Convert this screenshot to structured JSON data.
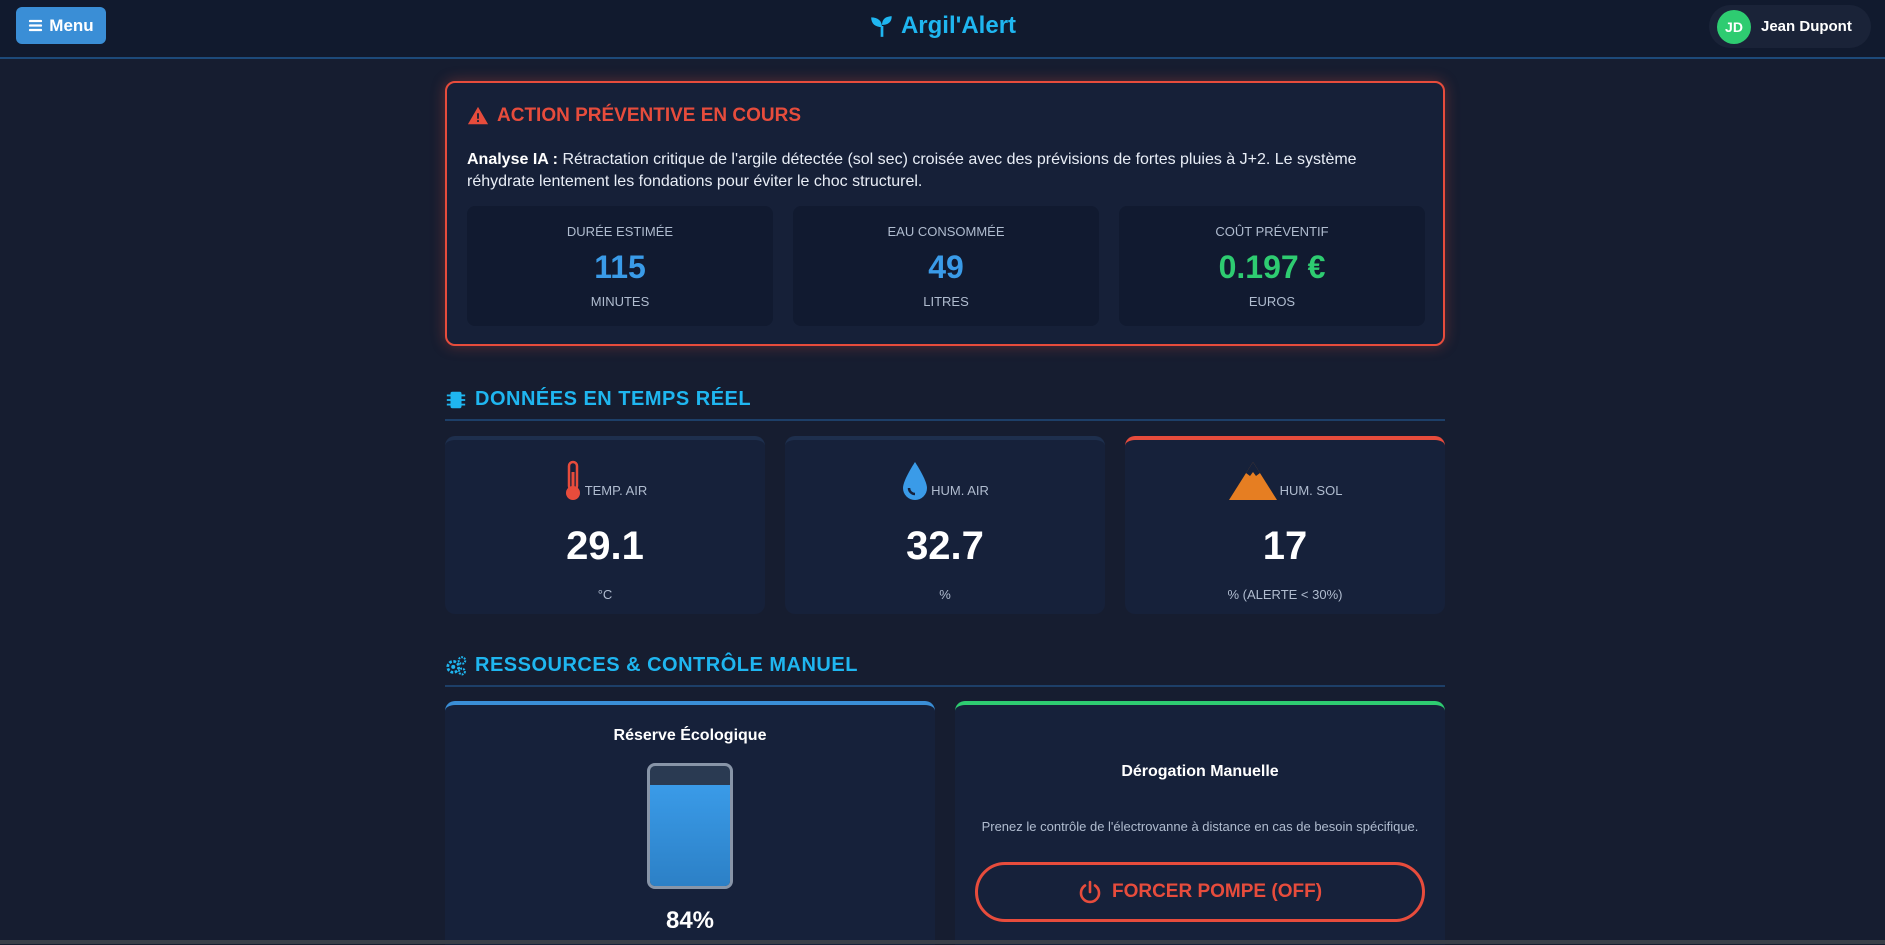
{
  "header": {
    "menu_label": "Menu",
    "brand": "Argil'Alert",
    "user": {
      "initials": "JD",
      "name": "Jean Dupont"
    }
  },
  "alert": {
    "title": "ACTION PRÉVENTIVE EN COURS",
    "analysis_label": "Analyse IA :",
    "analysis_text": "Rétractation critique de l'argile détectée (sol sec) croisée avec des prévisions de fortes pluies à J+2. Le système réhydrate lentement les fondations pour éviter le choc structurel.",
    "stats": [
      {
        "label": "Durée estimée",
        "value": "115",
        "unit": "Minutes"
      },
      {
        "label": "Eau consommée",
        "value": "49",
        "unit": "Litres"
      },
      {
        "label": "Coût préventif",
        "value": "0.197 €",
        "unit": "Euros"
      }
    ]
  },
  "realtime": {
    "title": "DONNÉES EN TEMPS RÉEL",
    "sensors": [
      {
        "label": "Temp. Air",
        "value": "29.1",
        "unit": "°C",
        "icon": "thermometer-icon"
      },
      {
        "label": "Hum. Air",
        "value": "32.7",
        "unit": "%",
        "icon": "droplet-icon"
      },
      {
        "label": "Hum. Sol",
        "value": "17",
        "unit": "% (ALERTE < 30%)",
        "icon": "mountain-icon"
      }
    ]
  },
  "resources": {
    "title": "RESSOURCES & CONTRÔLE MANUEL",
    "reserve": {
      "title": "Réserve Écologique",
      "percent_label": "84%",
      "level": 0.84
    },
    "derogation": {
      "title": "Dérogation Manuelle",
      "text": "Prenez le contrôle de l'électrovanne à distance en cas de besoin spécifique.",
      "button_label": "FORCER POMPE (OFF)"
    }
  },
  "colors": {
    "accent": "#1fb6f0",
    "alert": "#e74c3c",
    "success": "#2ecc71",
    "info": "#3a9be8"
  }
}
